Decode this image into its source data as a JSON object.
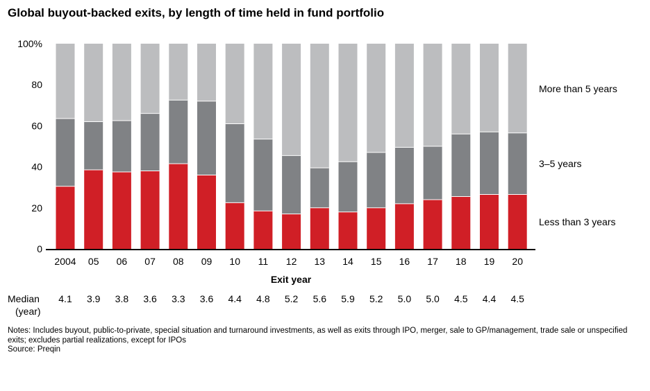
{
  "title": "Global buyout-backed exits, by length of time held in fund portfolio",
  "notes": "Notes: Includes buyout, public-to-private, special situation and turnaround investments, as well as exits through IPO, merger, sale to GP/management, trade sale or unspecified exits; excludes partial realizations, except for IPOs",
  "source": "Source: Preqin",
  "chart_data": {
    "type": "bar",
    "stacked": true,
    "title": "Global buyout-backed exits, by length of time held in fund portfolio",
    "xlabel": "Exit year",
    "ylabel": "",
    "ylim": [
      0,
      100
    ],
    "yticks": [
      "0",
      "20",
      "40",
      "60",
      "80",
      "100%"
    ],
    "ytick_values": [
      0,
      20,
      40,
      60,
      80,
      100
    ],
    "categories": [
      "2004",
      "05",
      "06",
      "07",
      "08",
      "09",
      "10",
      "11",
      "12",
      "13",
      "14",
      "15",
      "16",
      "17",
      "18",
      "19",
      "20"
    ],
    "series": [
      {
        "name": "Less than 3 years",
        "color": "#d01f26",
        "values": [
          30.5,
          38.5,
          37.5,
          38,
          41.5,
          36,
          22.5,
          18.5,
          17,
          20,
          18,
          20,
          22,
          24,
          25.5,
          26.5,
          26.5
        ]
      },
      {
        "name": "3–5 years",
        "color": "#808285",
        "values": [
          33,
          23.5,
          25,
          28,
          31,
          36,
          38.5,
          35,
          28.5,
          19.5,
          24.5,
          27,
          27.5,
          26,
          30.5,
          30.5,
          30
        ]
      },
      {
        "name": "More than 5 years",
        "color": "#bcbdbf",
        "values": [
          36.5,
          38,
          37.5,
          34,
          27.5,
          28,
          39,
          46.5,
          54.5,
          60.5,
          57.5,
          53,
          50.5,
          50,
          44,
          43,
          43.5
        ]
      }
    ],
    "median_label": [
      "Median",
      "(year)"
    ],
    "median_values": [
      "4.1",
      "3.9",
      "3.8",
      "3.6",
      "3.3",
      "3.6",
      "4.4",
      "4.8",
      "5.2",
      "5.6",
      "5.9",
      "5.2",
      "5.0",
      "5.0",
      "4.5",
      "4.4",
      "4.5"
    ],
    "legend_placement": "right",
    "grid": false
  }
}
